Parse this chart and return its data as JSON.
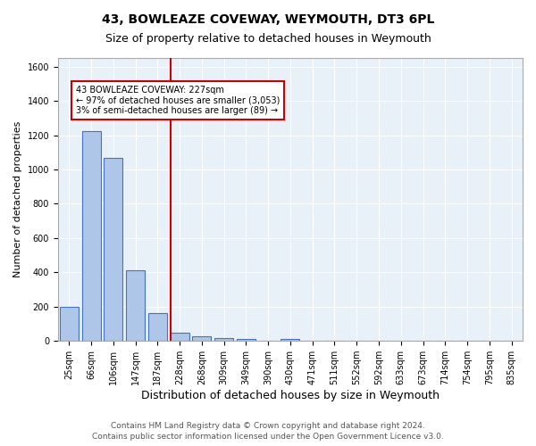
{
  "title": "43, BOWLEAZE COVEWAY, WEYMOUTH, DT3 6PL",
  "subtitle": "Size of property relative to detached houses in Weymouth",
  "xlabel": "Distribution of detached houses by size in Weymouth",
  "ylabel": "Number of detached properties",
  "categories": [
    "25sqm",
    "66sqm",
    "106sqm",
    "147sqm",
    "187sqm",
    "228sqm",
    "268sqm",
    "309sqm",
    "349sqm",
    "390sqm",
    "430sqm",
    "471sqm",
    "511sqm",
    "552sqm",
    "592sqm",
    "633sqm",
    "673sqm",
    "714sqm",
    "754sqm",
    "795sqm",
    "835sqm"
  ],
  "values": [
    200,
    1225,
    1070,
    410,
    165,
    50,
    25,
    18,
    12,
    0,
    12,
    0,
    0,
    0,
    0,
    0,
    0,
    0,
    0,
    0,
    0
  ],
  "bar_color": "#aec6e8",
  "bar_edge_color": "#4472c4",
  "vline_index": 5,
  "vline_color": "#cc0000",
  "annotation_line1": "43 BOWLEAZE COVEWAY: 227sqm",
  "annotation_line2": "← 97% of detached houses are smaller (3,053)",
  "annotation_line3": "3% of semi-detached houses are larger (89) →",
  "annotation_box_color": "white",
  "annotation_box_edge_color": "#cc0000",
  "ylim": [
    0,
    1650
  ],
  "yticks": [
    0,
    200,
    400,
    600,
    800,
    1000,
    1200,
    1400,
    1600
  ],
  "background_color": "#e8f0f8",
  "grid_color": "white",
  "footer_line1": "Contains HM Land Registry data © Crown copyright and database right 2024.",
  "footer_line2": "Contains public sector information licensed under the Open Government Licence v3.0.",
  "title_fontsize": 10,
  "subtitle_fontsize": 9,
  "xlabel_fontsize": 9,
  "ylabel_fontsize": 8,
  "tick_fontsize": 7,
  "annotation_fontsize": 7,
  "footer_fontsize": 6.5
}
